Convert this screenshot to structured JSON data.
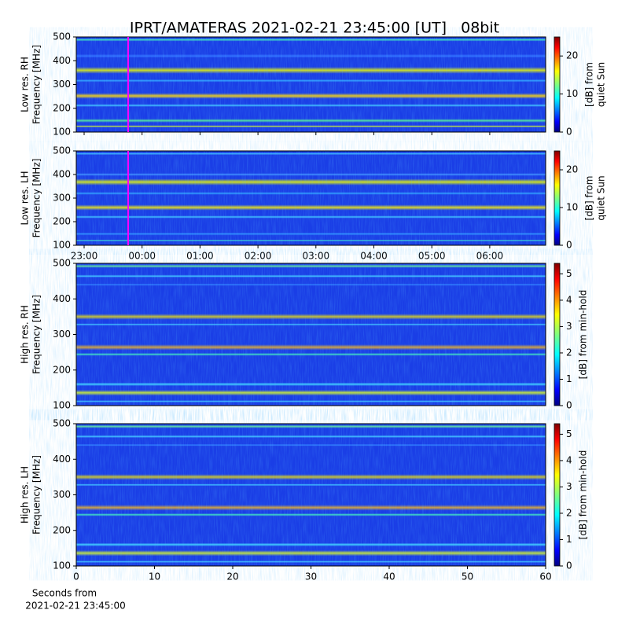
{
  "chart_data": [
    {
      "type": "heatmap",
      "title": "IPRT/AMATERAS 2021-02-21 23:45:00 [UT]   08bit",
      "ylabel": [
        "Low res. RH",
        "Frequency [MHz]"
      ],
      "ylim": [
        100,
        500
      ],
      "yticks": [
        100,
        200,
        300,
        400,
        500
      ],
      "colorbar_label": [
        "[dB] from",
        "quiet Sun"
      ],
      "clim": [
        0,
        25
      ],
      "cticks": [
        0,
        10,
        20
      ]
    },
    {
      "type": "heatmap",
      "ylabel": [
        "Low res. LH",
        "Frequency [MHz]"
      ],
      "ylim": [
        100,
        500
      ],
      "yticks": [
        100,
        200,
        300,
        400,
        500
      ],
      "xticks": [
        "23:00",
        "00:00",
        "01:00",
        "02:00",
        "03:00",
        "04:00",
        "05:00",
        "06:00"
      ],
      "colorbar_label": [
        "[dB] from",
        "quiet Sun"
      ],
      "clim": [
        0,
        25
      ],
      "cticks": [
        0,
        10,
        20
      ]
    },
    {
      "type": "heatmap",
      "ylabel": [
        "High res. RH",
        "Frequency [MHz]"
      ],
      "ylim": [
        100,
        500
      ],
      "yticks": [
        100,
        200,
        300,
        400,
        500
      ],
      "colorbar_label": [
        "[dB] from min-hold"
      ],
      "clim": [
        0,
        5.4
      ],
      "cticks": [
        0,
        1,
        2,
        3,
        4,
        5
      ]
    },
    {
      "type": "heatmap",
      "ylabel": [
        "High res. LH",
        "Frequency [MHz]"
      ],
      "ylim": [
        100,
        500
      ],
      "yticks": [
        100,
        200,
        300,
        400,
        500
      ],
      "xlim": [
        0,
        60
      ],
      "xticks": [
        0,
        10,
        20,
        30,
        40,
        50,
        60
      ],
      "xlabel": [
        "Seconds from",
        "2021-02-21 23:45:00"
      ],
      "colorbar_label": [
        "[dB] from min-hold"
      ],
      "clim": [
        0,
        5.4
      ],
      "cticks": [
        0,
        1,
        2,
        3,
        4,
        5
      ]
    }
  ]
}
